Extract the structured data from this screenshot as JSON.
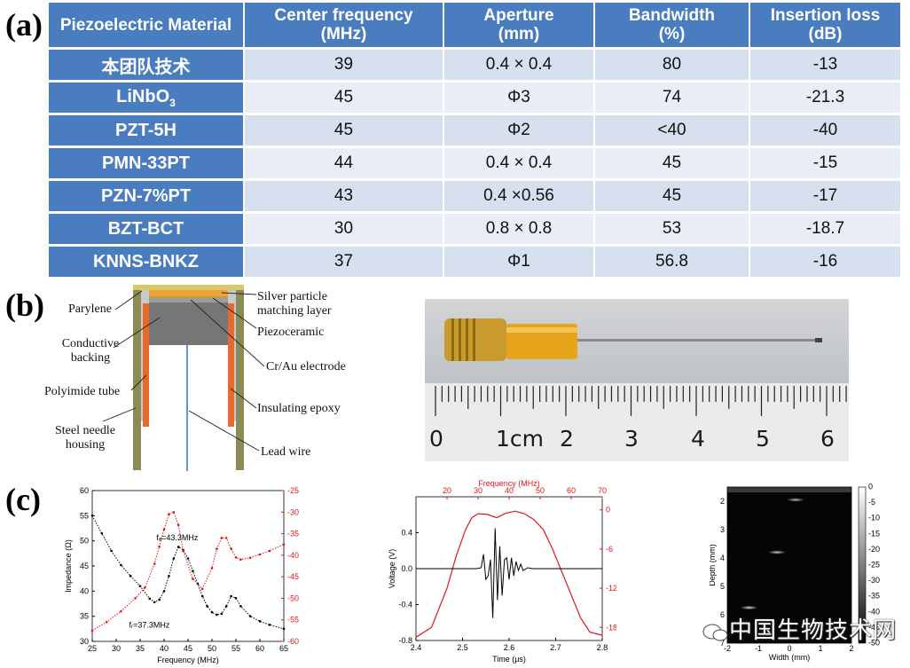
{
  "panels": {
    "a": "(a)",
    "b": "(b)",
    "c": "(c)"
  },
  "table": {
    "headers": [
      {
        "l1": "Piezoelectric Material",
        "l2": ""
      },
      {
        "l1": "Center frequency",
        "l2": "(MHz)"
      },
      {
        "l1": "Aperture",
        "l2": "(mm)"
      },
      {
        "l1": "Bandwidth",
        "l2": "(%)"
      },
      {
        "l1": "Insertion loss",
        "l2": "(dB)"
      }
    ],
    "rows": [
      {
        "material": "本团队技术",
        "sub": "",
        "freq": "39",
        "aperture": "0.4 × 0.4",
        "bandwidth": "80",
        "loss": "-13"
      },
      {
        "material": "LiNbO",
        "sub": "3",
        "freq": "45",
        "aperture": "Φ3",
        "bandwidth": "74",
        "loss": "-21.3"
      },
      {
        "material": "PZT-5H",
        "sub": "",
        "freq": "45",
        "aperture": "Φ2",
        "bandwidth": "<40",
        "loss": "-40"
      },
      {
        "material": "PMN-33PT",
        "sub": "",
        "freq": "44",
        "aperture": "0.4 × 0.4",
        "bandwidth": "45",
        "loss": "-15"
      },
      {
        "material": "PZN-7%PT",
        "sub": "",
        "freq": "43",
        "aperture": "0.4 ×0.56",
        "bandwidth": "45",
        "loss": "-17"
      },
      {
        "material": "BZT-BCT",
        "sub": "",
        "freq": "30",
        "aperture": "0.8 × 0.8",
        "bandwidth": "53",
        "loss": "-18.7"
      },
      {
        "material": "KNNS-BNKZ",
        "sub": "",
        "freq": "37",
        "aperture": "Φ1",
        "bandwidth": "56.8",
        "loss": "-16"
      }
    ]
  },
  "diagram": {
    "labels": {
      "parylene": "Parylene",
      "backing1": "Conductive",
      "backing2": "backing",
      "polyimide": "Polyimide tube",
      "steel1": "Steel needle",
      "steel2": "housing",
      "silver1": "Silver particle",
      "silver2": "matching layer",
      "piezo": "Piezoceramic",
      "electrode": "Cr/Au electrode",
      "epoxy": "Insulating epoxy",
      "lead": "Lead wire"
    }
  },
  "photo": {
    "ruler_numbers": [
      "0",
      "1cm",
      "2",
      "3",
      "4",
      "5",
      "6"
    ]
  },
  "watermark": "中国生物技术网",
  "chart_data": [
    {
      "type": "line",
      "xlabel": "Frequency (MHz)",
      "ylabel": "Impedance (Ω)",
      "ylabel2": "Phase (°)",
      "xlim": [
        25,
        65
      ],
      "ylim": [
        30,
        60
      ],
      "y2lim": [
        -60,
        -25
      ],
      "xticks": [
        25,
        30,
        35,
        40,
        45,
        50,
        55,
        60,
        65
      ],
      "yticks": [
        30,
        35,
        40,
        45,
        50,
        55,
        60
      ],
      "y2ticks": [
        -60,
        -55,
        -50,
        -45,
        -40,
        -35,
        -30,
        -25
      ],
      "annotations": [
        {
          "text": "fₐ=43.3MHz",
          "x": 43.3,
          "y": 49.2
        },
        {
          "text": "fᵣ=37.3MHz",
          "x": 37.3,
          "y": 35.0
        }
      ],
      "series": [
        {
          "axis": "left",
          "color": "#000000",
          "x": [
            25,
            27,
            29,
            31,
            33,
            35,
            37,
            38,
            39,
            40,
            41,
            42,
            43,
            44,
            45,
            46,
            47,
            48,
            49,
            50,
            51,
            52,
            53,
            54,
            55,
            56,
            58,
            60,
            62,
            65
          ],
          "y": [
            55,
            51.5,
            48,
            45.2,
            43,
            41,
            38.5,
            37.8,
            38.3,
            40,
            43,
            46.5,
            48.8,
            48.2,
            46.5,
            44,
            41.5,
            39,
            37,
            35.8,
            35.3,
            35.5,
            37,
            39,
            38.6,
            37,
            35,
            34,
            33.3,
            32.5
          ]
        },
        {
          "axis": "right",
          "color": "#e8141a",
          "x": [
            25,
            28,
            31,
            34,
            36,
            38,
            39,
            40,
            41,
            42,
            43,
            44,
            46,
            48,
            50,
            51,
            52,
            53,
            54,
            55,
            56,
            58,
            60,
            62,
            65
          ],
          "y": [
            -57.5,
            -55.5,
            -53,
            -50,
            -47.5,
            -42,
            -38,
            -34,
            -30.5,
            -30,
            -33,
            -39,
            -45.5,
            -47.8,
            -43,
            -38.5,
            -36,
            -36,
            -38.5,
            -40.5,
            -41,
            -40.6,
            -39.8,
            -39,
            -37.5
          ]
        }
      ]
    },
    {
      "type": "line",
      "xlabel": "Time (μs)",
      "ylabel": "Voltage (V)",
      "x2label": "Frequency (MHz)",
      "ylabel2": "Amplitude (dB)",
      "xlim": [
        2.4,
        2.8
      ],
      "ylim": [
        -0.8,
        0.8
      ],
      "x2lim": [
        10,
        70
      ],
      "y2lim": [
        -20,
        2
      ],
      "xticks": [
        2.4,
        2.5,
        2.6,
        2.7,
        2.8
      ],
      "yticks": [
        -0.8,
        -0.4,
        0.0,
        0.4
      ],
      "x2ticks": [
        20,
        30,
        40,
        50,
        60,
        70
      ],
      "y2ticks": [
        0,
        -6,
        -12,
        -18
      ],
      "series": [
        {
          "axis": "left",
          "color": "#000000",
          "x": [
            2.4,
            2.53,
            2.54,
            2.545,
            2.55,
            2.555,
            2.56,
            2.565,
            2.57,
            2.575,
            2.58,
            2.585,
            2.59,
            2.595,
            2.6,
            2.605,
            2.61,
            2.615,
            2.62,
            2.625,
            2.63,
            2.64,
            2.65,
            2.7,
            2.8
          ],
          "y": [
            0,
            0,
            0.01,
            0.16,
            -0.12,
            -0.08,
            0.1,
            -0.55,
            0.45,
            -0.35,
            0.25,
            -0.3,
            0.1,
            0.12,
            -0.12,
            0.12,
            -0.08,
            0.08,
            -0.02,
            0.05,
            -0.02,
            0.01,
            0,
            0,
            0
          ]
        },
        {
          "axis": "right",
          "color": "#e8141a",
          "xaxis": "top",
          "x": [
            10,
            15,
            20,
            23,
            26,
            28,
            30,
            33,
            36,
            39,
            42,
            45,
            48,
            51,
            54,
            57,
            60,
            63,
            66,
            70
          ],
          "y": [
            -19.5,
            -18,
            -12,
            -7,
            -3,
            -1.2,
            -0.6,
            -0.7,
            -1.2,
            -0.5,
            -0.2,
            -0.6,
            -1.5,
            -3,
            -6,
            -9.5,
            -13,
            -16.5,
            -18.7,
            -19.2
          ]
        }
      ]
    },
    {
      "type": "heatmap",
      "xlabel": "Width (mm)",
      "ylabel": "Depth (mm)",
      "xlim": [
        -2,
        2
      ],
      "ylim": [
        1.5,
        7
      ],
      "xticks": [
        -2,
        -1,
        0,
        1,
        2
      ],
      "yticks": [
        2,
        3,
        4,
        5,
        6,
        7
      ],
      "colorbar": {
        "min": -50,
        "max": 0,
        "ticks": [
          0,
          -5,
          -10,
          -15,
          -20,
          -25,
          -30,
          -35,
          -40,
          -45,
          -50
        ]
      },
      "points": [
        {
          "x": 0.2,
          "depth": 1.95,
          "level": -20
        },
        {
          "x": -0.4,
          "depth": 3.8,
          "level": -15
        },
        {
          "x": -1.3,
          "depth": 5.75,
          "level": -10
        }
      ]
    }
  ]
}
